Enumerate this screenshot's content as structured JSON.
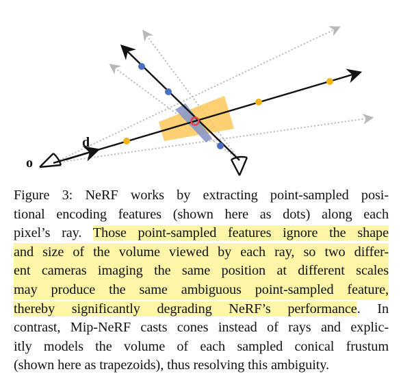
{
  "figure": {
    "label_o": "o",
    "label_d": "d",
    "colors": {
      "ray": "#111111",
      "ghost_ray": "#b8b8b8",
      "blue_dot": "#4d6fc3",
      "yellow_dot": "#f2b41c",
      "frustum_yellow": "#fcc85a",
      "frustum_blue": "#8b98c8",
      "intersection_ring": "#e0453a"
    }
  },
  "caption": {
    "line1": "Figure 3: NeRF works by extracting point-sampled posi-",
    "line2": "tional encoding features (shown here as dots) along each",
    "line3_a": "pixel’s ray. ",
    "line3_b": "Those point-sampled features ignore the shape",
    "line4": "and size of the volume viewed by each ray, so two differ-",
    "line5": "ent cameras imaging the same position at different scales",
    "line6": "may produce the same ambiguous point-sampled feature,",
    "line7_a": "thereby significantly degrading NeRF’s performance",
    "line7_b": ".  In",
    "line8": "contrast, Mip-NeRF casts cones instead of rays and explic-",
    "line9": "itly models the volume of each sampled conical frustum",
    "line10": "(shown here as trapezoids), thus resolving this ambiguity."
  }
}
